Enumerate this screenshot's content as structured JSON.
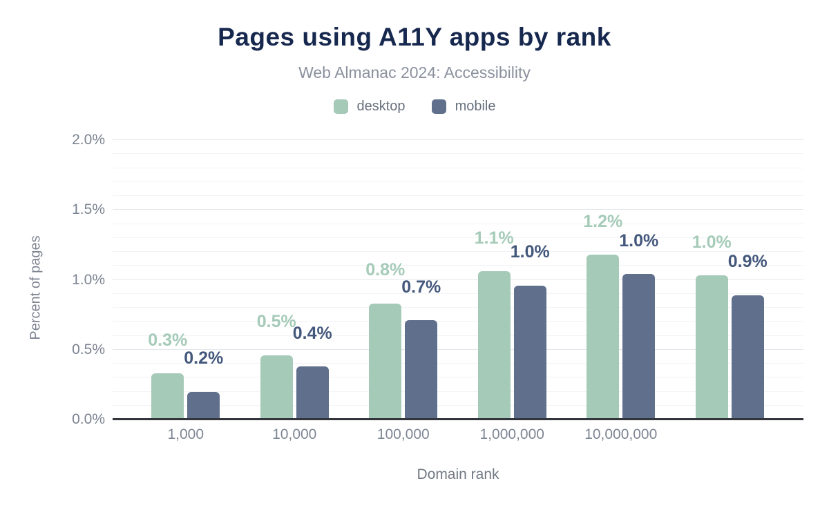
{
  "header": {
    "title": "Pages using A11Y apps by rank",
    "subtitle": "Web Almanac 2024: Accessibility"
  },
  "legend": {
    "items": [
      {
        "label": "desktop",
        "color": "#a6cab8"
      },
      {
        "label": "mobile",
        "color": "#5f6f8c"
      }
    ]
  },
  "chart_data": {
    "type": "bar",
    "title": "Pages using A11Y apps by rank",
    "subtitle": "Web Almanac 2024: Accessibility",
    "xlabel": "Domain rank",
    "ylabel": "Percent of pages",
    "ylim": [
      0,
      2.0
    ],
    "yticks": [
      {
        "value": 0.0,
        "label": "0.0%"
      },
      {
        "value": 0.5,
        "label": "0.5%"
      },
      {
        "value": 1.0,
        "label": "1.0%"
      },
      {
        "value": 1.5,
        "label": "1.5%"
      },
      {
        "value": 2.0,
        "label": "2.0%"
      }
    ],
    "grid": "horizontal; minor line every 0.1%, major line every 0.5%",
    "legend_position": "top-center",
    "categories": [
      "1,000",
      "10,000",
      "100,000",
      "1,000,000",
      "10,000,000",
      ""
    ],
    "series": [
      {
        "name": "desktop",
        "color": "#a6cab8",
        "label_color": "#a5cbb8",
        "values": [
          0.33,
          0.46,
          0.83,
          1.06,
          1.18,
          1.03
        ],
        "labels": [
          "0.3%",
          "0.5%",
          "0.8%",
          "1.1%",
          "1.2%",
          "1.0%"
        ]
      },
      {
        "name": "mobile",
        "color": "#5f6f8c",
        "label_color": "#44587c",
        "values": [
          0.2,
          0.38,
          0.71,
          0.96,
          1.04,
          0.89
        ],
        "labels": [
          "0.2%",
          "0.4%",
          "0.7%",
          "1.0%",
          "1.0%",
          "0.9%"
        ]
      }
    ]
  }
}
